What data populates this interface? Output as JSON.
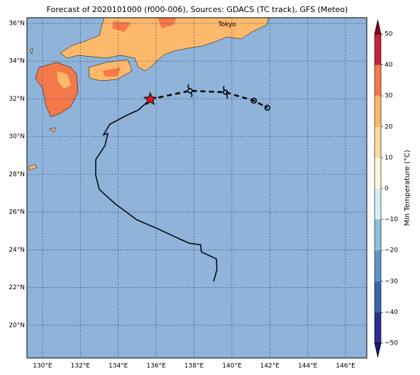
{
  "chart_data": {
    "type": "map",
    "title": "Forecast of 2020101000 (f000-006), Sources: GDACS (TC track), GFS (Meteo)",
    "xlim": [
      129.18,
      147.12
    ],
    "ylim": [
      18.27,
      36.3
    ],
    "xticks": [
      {
        "value": 130,
        "label": "130°E"
      },
      {
        "value": 132,
        "label": "132°E"
      },
      {
        "value": 134,
        "label": "134°E"
      },
      {
        "value": 136,
        "label": "136°E"
      },
      {
        "value": 138,
        "label": "138°E"
      },
      {
        "value": 140,
        "label": "140°E"
      },
      {
        "value": 142,
        "label": "142°E"
      },
      {
        "value": 144,
        "label": "144°E"
      },
      {
        "value": 146,
        "label": "146°E"
      }
    ],
    "yticks": [
      {
        "value": 20,
        "label": "20°N"
      },
      {
        "value": 22,
        "label": "22°N"
      },
      {
        "value": 24,
        "label": "24°N"
      },
      {
        "value": 26,
        "label": "26°N"
      },
      {
        "value": 28,
        "label": "28°N"
      },
      {
        "value": 30,
        "label": "30°N"
      },
      {
        "value": 32,
        "label": "32°N"
      },
      {
        "value": 34,
        "label": "34°N"
      },
      {
        "value": 36,
        "label": "36°N"
      }
    ],
    "grid": true,
    "annotations": [
      {
        "text": "Tokyo",
        "lon": 139.75,
        "lat": 35.95
      }
    ],
    "tracks": [
      {
        "style": "solid",
        "color": "#000000",
        "lon": [
          139.03,
          139.21,
          139.18,
          138.39,
          138.35,
          137.75,
          136.93,
          136.03,
          134.98,
          133.82,
          133.0,
          132.81,
          132.81,
          133.3,
          133.45,
          133.22,
          133.56,
          134.49,
          135.06,
          135.69
        ],
        "lat": [
          22.32,
          22.95,
          23.52,
          23.89,
          24.27,
          24.35,
          24.72,
          25.14,
          25.59,
          26.45,
          27.2,
          27.95,
          28.78,
          29.53,
          30.17,
          30.1,
          30.66,
          31.15,
          31.41,
          31.98
        ]
      },
      {
        "style": "dashed",
        "color": "#000000",
        "lon": [
          135.69,
          137.79,
          139.66,
          141.16,
          141.87
        ],
        "lat": [
          31.98,
          32.43,
          32.35,
          31.9,
          31.53
        ],
        "markers": [
          "star",
          "cyclone",
          "cyclone",
          "circle",
          "circle"
        ]
      }
    ],
    "colorbar": {
      "label": "Min Temperature (°C)",
      "lim": [
        -50,
        50
      ],
      "ticks": [
        {
          "value": -50,
          "label": "−50"
        },
        {
          "value": -40,
          "label": "−40"
        },
        {
          "value": -30,
          "label": "−30"
        },
        {
          "value": -20,
          "label": "−20"
        },
        {
          "value": -10,
          "label": "−10"
        },
        0,
        10,
        20,
        30,
        40,
        50
      ],
      "colors": [
        "#2b2f8f",
        "#3a63b0",
        "#5e93c6",
        "#8fc0dd",
        "#d5eef5",
        "#fdf6d8",
        "#fed9a0",
        "#fdb96b",
        "#f4794a",
        "#c8213a"
      ],
      "extend_colors": [
        "#1a1a6e",
        "#8b0024"
      ]
    }
  }
}
